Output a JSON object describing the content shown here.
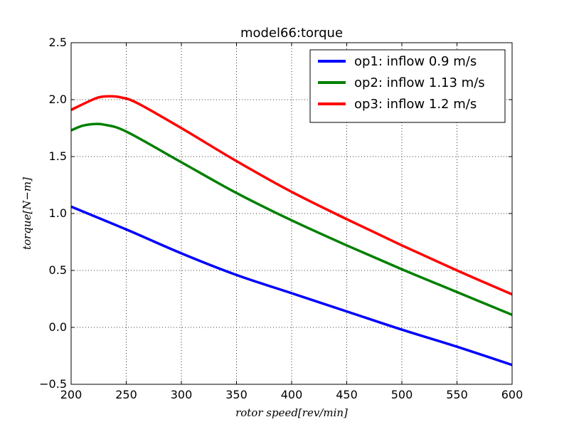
{
  "chart_data": {
    "type": "line",
    "title": "model66:torque",
    "xlabel": "rotor speed[rev/min]",
    "ylabel": "torque[N−m]",
    "xlim": [
      200,
      600
    ],
    "ylim": [
      -0.5,
      2.5
    ],
    "xticks": [
      200,
      250,
      300,
      350,
      400,
      450,
      500,
      550,
      600
    ],
    "yticks": [
      -0.5,
      0.0,
      0.5,
      1.0,
      1.5,
      2.0,
      2.5
    ],
    "ytick_labels": [
      "−0.5",
      "0.0",
      "0.5",
      "1.0",
      "1.5",
      "2.0",
      "2.5"
    ],
    "grid": true,
    "legend_position": "top-right",
    "series": [
      {
        "name": "op1: inflow 0.9 m/s",
        "color": "#0000ff",
        "x": [
          200,
          250,
          300,
          350,
          400,
          450,
          500,
          550,
          600
        ],
        "y": [
          1.06,
          0.86,
          0.65,
          0.46,
          0.3,
          0.14,
          -0.02,
          -0.17,
          -0.33
        ]
      },
      {
        "name": "op2: inflow 1.13 m/s",
        "color": "#008000",
        "x": [
          200,
          210,
          220,
          230,
          250,
          300,
          350,
          400,
          450,
          500,
          550,
          600
        ],
        "y": [
          1.73,
          1.77,
          1.785,
          1.78,
          1.72,
          1.45,
          1.18,
          0.94,
          0.72,
          0.51,
          0.31,
          0.11
        ]
      },
      {
        "name": "op3: inflow 1.2 m/s",
        "color": "#ff0000",
        "x": [
          200,
          215,
          225,
          235,
          245,
          260,
          300,
          350,
          400,
          450,
          500,
          550,
          600
        ],
        "y": [
          1.91,
          1.98,
          2.02,
          2.03,
          2.02,
          1.97,
          1.75,
          1.46,
          1.19,
          0.95,
          0.72,
          0.5,
          0.29
        ]
      }
    ]
  }
}
